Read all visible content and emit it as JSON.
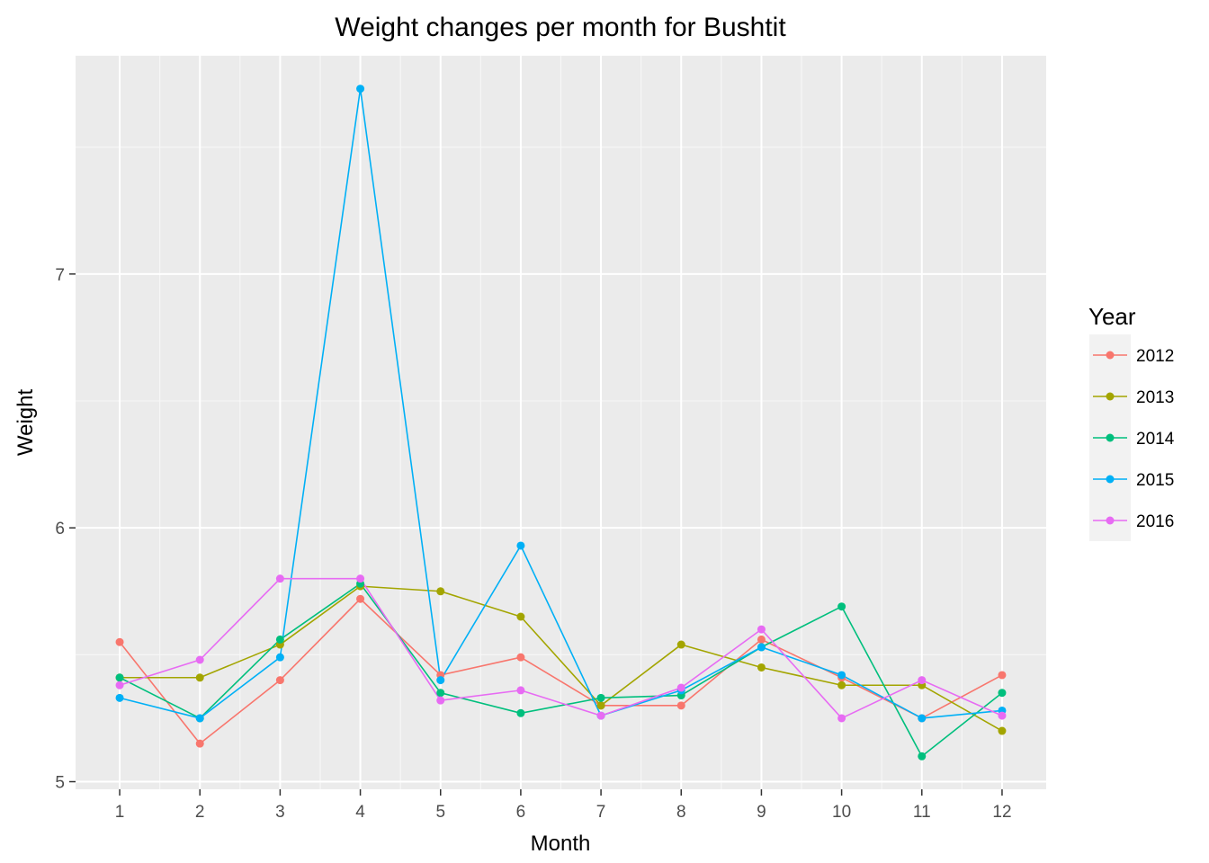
{
  "chart_data": {
    "type": "line",
    "title": "Weight changes per month for Bushtit",
    "xlabel": "Month",
    "ylabel": "Weight",
    "categories": [
      "1",
      "2",
      "3",
      "4",
      "5",
      "6",
      "7",
      "8",
      "9",
      "10",
      "11",
      "12"
    ],
    "x": [
      1,
      2,
      3,
      4,
      5,
      6,
      7,
      8,
      9,
      10,
      11,
      12
    ],
    "xlim": [
      0.45,
      12.55
    ],
    "ylim": [
      4.97,
      7.86
    ],
    "yticks": [
      5,
      6,
      7
    ],
    "ytick_labels": [
      "5",
      "6",
      "7"
    ],
    "grid": true,
    "legend": {
      "title": "Year",
      "position": "right"
    },
    "series": [
      {
        "name": "2012",
        "color": "#F8766D",
        "values": [
          5.55,
          5.15,
          5.4,
          5.72,
          5.42,
          5.49,
          5.3,
          5.3,
          5.56,
          5.41,
          5.25,
          5.42
        ]
      },
      {
        "name": "2013",
        "color": "#A3A500",
        "values": [
          5.41,
          5.41,
          5.54,
          5.77,
          5.75,
          5.65,
          5.3,
          5.54,
          5.45,
          5.38,
          5.38,
          5.2
        ]
      },
      {
        "name": "2014",
        "color": "#00BF7D",
        "values": [
          5.41,
          5.25,
          5.56,
          5.78,
          5.35,
          5.27,
          5.33,
          5.34,
          5.53,
          5.69,
          5.1,
          5.35
        ]
      },
      {
        "name": "2015",
        "color": "#00B0F6",
        "values": [
          5.33,
          5.25,
          5.49,
          7.73,
          5.4,
          5.93,
          5.26,
          5.36,
          5.53,
          5.42,
          5.25,
          5.28
        ]
      },
      {
        "name": "2016",
        "color": "#E76BF3",
        "values": [
          5.38,
          5.48,
          5.8,
          5.8,
          5.32,
          5.36,
          5.26,
          5.37,
          5.6,
          5.25,
          5.4,
          5.26
        ]
      }
    ]
  }
}
